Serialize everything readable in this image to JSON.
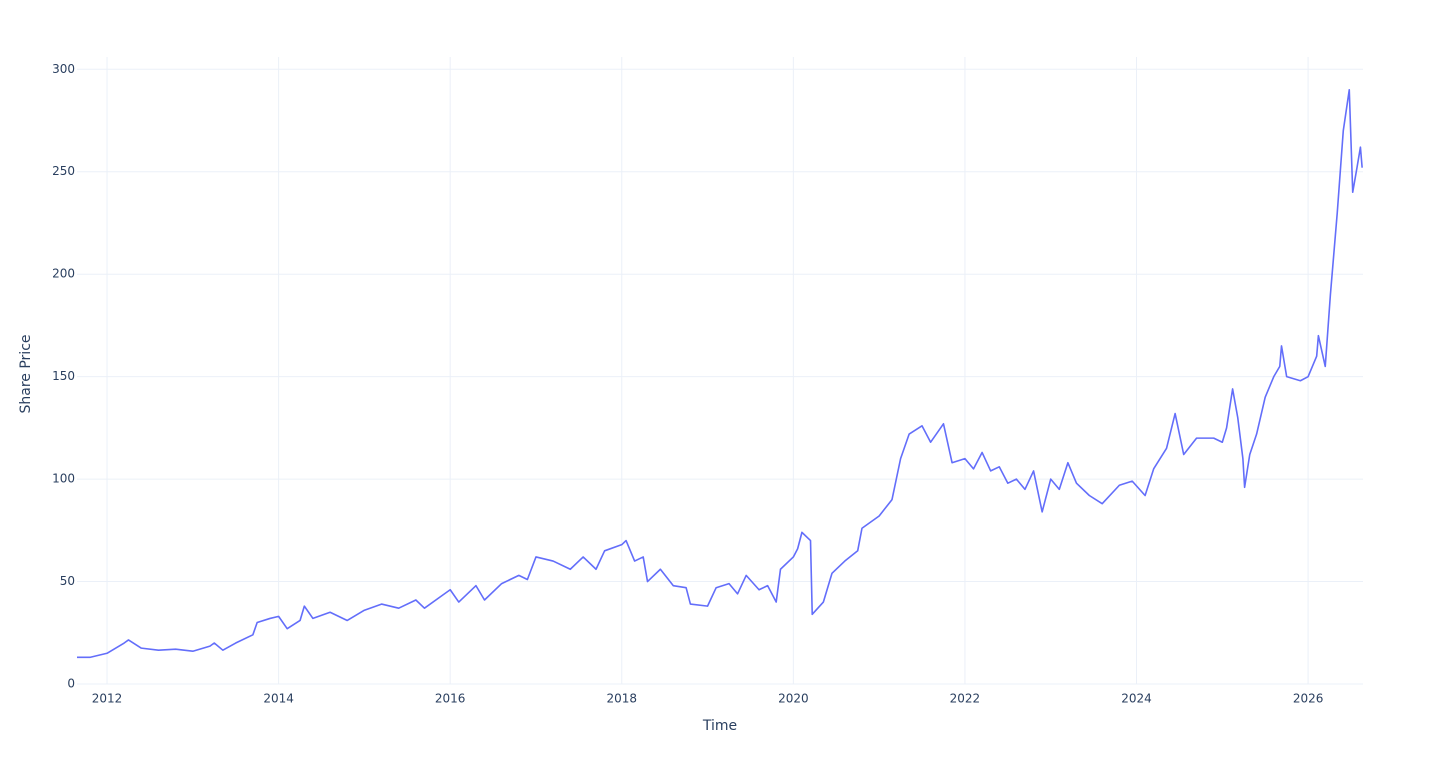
{
  "chart_data": {
    "type": "line",
    "x_label": "Time",
    "y_label": "Share Price",
    "x": [
      2011.65,
      2011.8,
      2012.0,
      2012.2,
      2012.25,
      2012.4,
      2012.6,
      2012.8,
      2013.0,
      2013.2,
      2013.25,
      2013.35,
      2013.5,
      2013.7,
      2013.75,
      2013.9,
      2014.0,
      2014.1,
      2014.25,
      2014.3,
      2014.4,
      2014.6,
      2014.8,
      2015.0,
      2015.2,
      2015.4,
      2015.6,
      2015.7,
      2015.9,
      2016.0,
      2016.1,
      2016.3,
      2016.4,
      2016.6,
      2016.8,
      2016.9,
      2017.0,
      2017.2,
      2017.4,
      2017.55,
      2017.7,
      2017.8,
      2018.0,
      2018.05,
      2018.15,
      2018.25,
      2018.3,
      2018.45,
      2018.6,
      2018.75,
      2018.8,
      2019.0,
      2019.1,
      2019.25,
      2019.35,
      2019.45,
      2019.6,
      2019.7,
      2019.8,
      2019.85,
      2020.0,
      2020.05,
      2020.1,
      2020.2,
      2020.22,
      2020.35,
      2020.45,
      2020.6,
      2020.75,
      2020.8,
      2021.0,
      2021.15,
      2021.25,
      2021.35,
      2021.5,
      2021.6,
      2021.75,
      2021.85,
      2022.0,
      2022.1,
      2022.2,
      2022.3,
      2022.4,
      2022.5,
      2022.6,
      2022.7,
      2022.8,
      2022.9,
      2023.0,
      2023.1,
      2023.2,
      2023.3,
      2023.45,
      2023.6,
      2023.8,
      2023.95,
      2024.1,
      2024.2,
      2024.35,
      2024.45,
      2024.55,
      2024.7,
      2024.9,
      2025.0,
      2025.05,
      2025.12,
      2025.18,
      2025.24,
      2025.26,
      2025.32,
      2025.4,
      2025.5,
      2025.6,
      2025.67,
      2025.69,
      2025.75,
      2025.91,
      2026.0,
      2026.1,
      2026.12,
      2026.2,
      2026.26,
      2026.34,
      2026.41,
      2026.48,
      2026.52,
      2026.57,
      2026.61,
      2026.63
    ],
    "values": [
      13,
      13,
      15,
      20,
      21.5,
      17.5,
      16.5,
      17,
      16,
      18.5,
      20,
      16.5,
      20,
      24,
      30,
      32,
      33,
      27,
      31,
      38,
      32,
      35,
      31,
      36,
      39,
      37,
      41,
      37,
      43,
      46,
      40,
      48,
      41,
      49,
      53,
      51,
      62,
      60,
      56,
      62,
      56,
      65,
      68,
      70,
      60,
      62,
      50,
      56,
      48,
      47,
      39,
      38,
      47,
      49,
      44,
      53,
      46,
      48,
      40,
      56,
      62,
      66,
      74,
      70,
      34,
      40,
      54,
      60,
      65,
      76,
      82,
      90,
      110,
      122,
      126,
      118,
      127,
      108,
      110,
      105,
      113,
      104,
      106,
      98,
      100,
      95,
      104,
      84,
      100,
      95,
      108,
      98,
      92,
      88,
      97,
      99,
      92,
      105,
      115,
      132,
      112,
      120,
      120,
      118,
      125,
      144,
      130,
      110,
      96,
      112,
      122,
      140,
      150,
      155,
      165,
      150,
      148,
      150,
      160,
      170,
      155,
      190,
      230,
      270,
      290,
      240,
      252,
      262,
      252
    ],
    "color": "#636efa",
    "xlim": [
      2011.65,
      2026.64
    ],
    "xticks": [
      2012,
      2014,
      2016,
      2018,
      2020,
      2022,
      2024,
      2026
    ],
    "ylim": [
      0,
      306
    ],
    "yticks": [
      0,
      50,
      100,
      150,
      200,
      250,
      300
    ],
    "grid": true
  }
}
